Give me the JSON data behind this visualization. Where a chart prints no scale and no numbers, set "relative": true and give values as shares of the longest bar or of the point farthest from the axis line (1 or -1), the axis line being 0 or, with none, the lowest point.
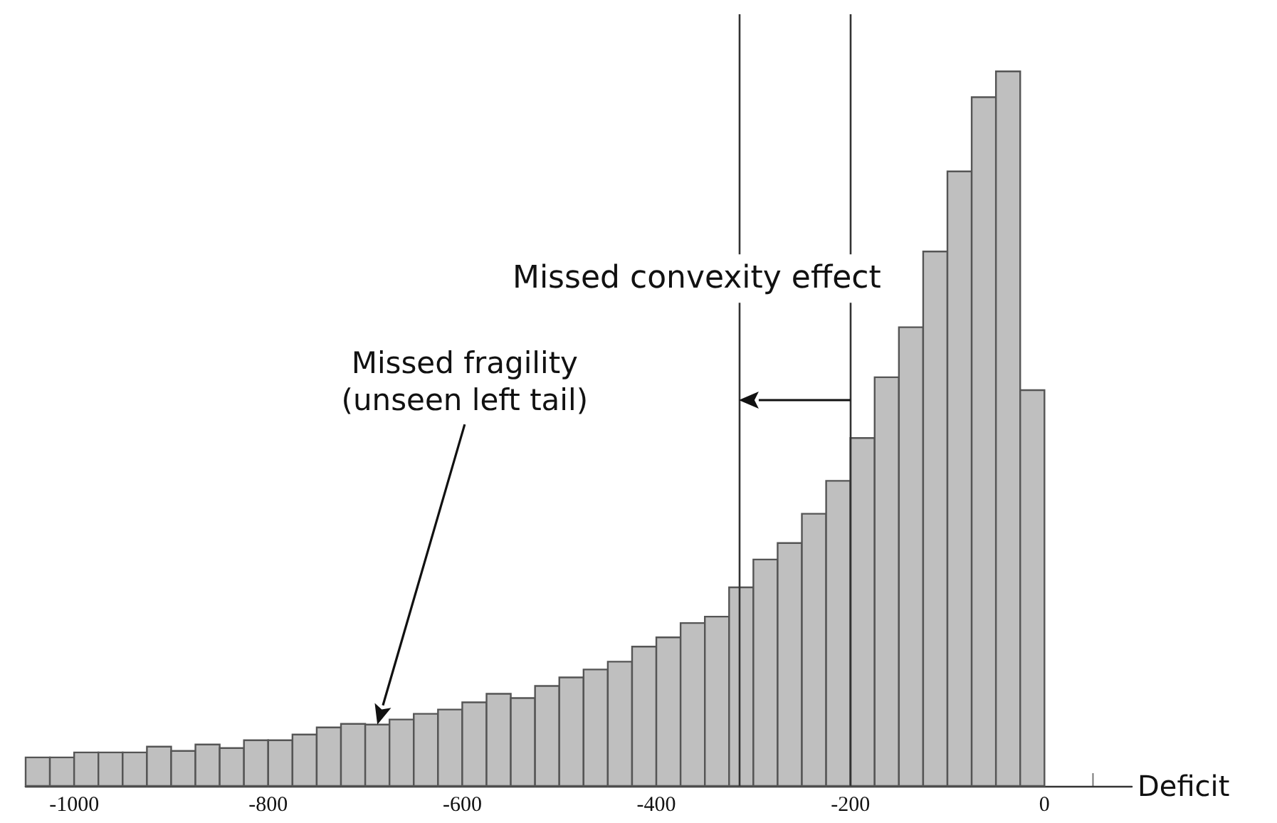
{
  "chart_data": {
    "type": "bar",
    "relative": true,
    "xlabel": "Deficit",
    "x": [
      -1037.5,
      -1012.5,
      -987.5,
      -962.5,
      -937.5,
      -912.5,
      -887.5,
      -862.5,
      -837.5,
      -812.5,
      -787.5,
      -762.5,
      -737.5,
      -712.5,
      -687.5,
      -662.5,
      -637.5,
      -612.5,
      -587.5,
      -562.5,
      -537.5,
      -512.5,
      -487.5,
      -462.5,
      -437.5,
      -412.5,
      -387.5,
      -362.5,
      -337.5,
      -312.5,
      -287.5,
      -262.5,
      -237.5,
      -212.5,
      -187.5,
      -162.5,
      -137.5,
      -112.5,
      -87.5,
      -62.5,
      -37.5,
      -12.5
    ],
    "values": [
      0.04,
      0.04,
      0.047,
      0.047,
      0.047,
      0.055,
      0.049,
      0.058,
      0.053,
      0.064,
      0.064,
      0.072,
      0.082,
      0.087,
      0.086,
      0.093,
      0.101,
      0.107,
      0.117,
      0.129,
      0.123,
      0.14,
      0.152,
      0.163,
      0.174,
      0.195,
      0.208,
      0.228,
      0.237,
      0.278,
      0.317,
      0.34,
      0.381,
      0.427,
      0.487,
      0.572,
      0.642,
      0.748,
      0.86,
      0.964,
      1,
      0.554
    ],
    "color": "#bfbfbf",
    "xlim": [
      -1050,
      90
    ],
    "xticks": [
      -1000,
      -800,
      -600,
      -400,
      -200,
      0,
      {
        "value": 50,
        "label": null
      }
    ],
    "ref_lines": [
      {
        "axis": "x",
        "value": -315,
        "color": "#333333"
      },
      {
        "axis": "x",
        "value": -200,
        "color": "#333333"
      }
    ],
    "annotations": [
      "Missed convexity effect",
      "Missed fragility\n(unseen left tail)"
    ]
  }
}
